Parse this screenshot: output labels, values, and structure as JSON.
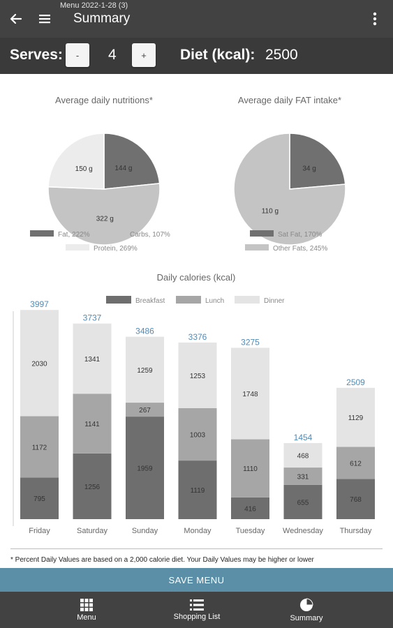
{
  "appbar": {
    "subtitle": "Menu 2022-1-28 (3)",
    "title": "Summary",
    "back_icon": "arrow-left-icon",
    "menu_icon": "hamburger-icon",
    "more_icon": "more-vertical-icon"
  },
  "serves": {
    "label": "Serves:",
    "minus": "-",
    "value": "4",
    "plus": "+",
    "diet_label": "Diet (kcal):",
    "diet_value": "2500"
  },
  "colors": {
    "dark": "#6e6e6e",
    "mid": "#a6a6a6",
    "light": "#e4e4e4",
    "pie_dark": "#707070",
    "pie_mid": "#c4c4c4",
    "pie_light": "#ececec",
    "value_blue": "#4f8bb8"
  },
  "chart_data": [
    {
      "type": "pie",
      "title": "Average daily nutritions*",
      "slices": [
        {
          "label": "144 g",
          "value": 144
        },
        {
          "label": "322 g",
          "value": 322
        },
        {
          "label": "150 g",
          "value": 150
        }
      ],
      "legend": [
        "Fat, 222%",
        "Carbs, 107%",
        "Protein, 269%"
      ],
      "legend_placement": "bottom"
    },
    {
      "type": "pie",
      "title": "Average daily FAT intake*",
      "slices": [
        {
          "label": "34 g",
          "value": 34
        },
        {
          "label": "110 g",
          "value": 110
        }
      ],
      "legend": [
        "Sat Fat, 170%",
        "Other Fats, 245%"
      ],
      "legend_placement": "bottom"
    },
    {
      "type": "bar",
      "stacked": true,
      "title": "Daily calories (kcal)",
      "categories": [
        "Friday",
        "Saturday",
        "Sunday",
        "Monday",
        "Tuesday",
        "Wednesday",
        "Thursday"
      ],
      "series": [
        {
          "name": "Breakfast",
          "values": [
            795,
            1256,
            1959,
            1119,
            416,
            655,
            768
          ]
        },
        {
          "name": "Lunch",
          "values": [
            1172,
            1141,
            267,
            1003,
            1110,
            331,
            612
          ]
        },
        {
          "name": "Dinner",
          "values": [
            2030,
            1341,
            1259,
            1253,
            1748,
            468,
            1129
          ]
        }
      ],
      "totals": [
        "3997",
        "3737",
        "3486",
        "3376",
        "3275",
        "1454",
        "2509"
      ],
      "ylim": [
        0,
        4000
      ],
      "legend_placement": "top"
    }
  ],
  "footnote": "* Percent Daily Values are based on a 2,000 calorie diet. Your Daily Values may be higher or lower",
  "save_button": "SAVE MENU",
  "nav": [
    {
      "label": "Menu",
      "icon": "grid-icon"
    },
    {
      "label": "Shopping List",
      "icon": "list-icon"
    },
    {
      "label": "Summary",
      "icon": "pie-chart-icon"
    }
  ]
}
